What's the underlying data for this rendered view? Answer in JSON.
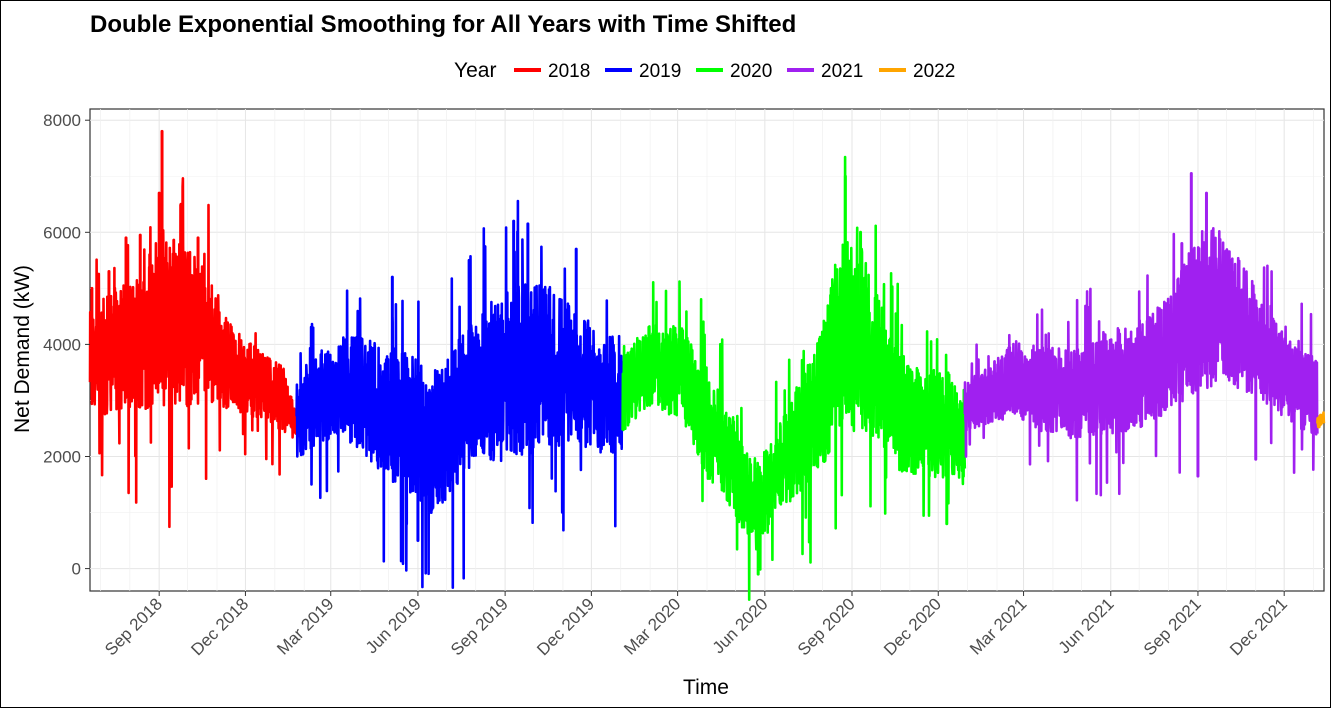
{
  "chart_data": {
    "type": "line",
    "title": "Double Exponential Smoothing for All Years with Time Shifted",
    "xlabel": "Time",
    "ylabel": "Net Demand (kW)",
    "legend_title": "Year",
    "legend_position": "top",
    "grid": true,
    "ylim": [
      -400,
      8200
    ],
    "xlim": [
      "2018-06-20",
      "2022-01-12"
    ],
    "y_ticks": [
      0,
      2000,
      4000,
      6000,
      8000
    ],
    "x_ticks": [
      {
        "date": "2018-09-01",
        "label": "Sep 2018"
      },
      {
        "date": "2018-12-01",
        "label": "Dec 2018"
      },
      {
        "date": "2019-03-01",
        "label": "Mar 2019"
      },
      {
        "date": "2019-06-01",
        "label": "Jun 2019"
      },
      {
        "date": "2019-09-01",
        "label": "Sep 2019"
      },
      {
        "date": "2019-12-01",
        "label": "Dec 2019"
      },
      {
        "date": "2020-03-01",
        "label": "Mar 2020"
      },
      {
        "date": "2020-06-01",
        "label": "Jun 2020"
      },
      {
        "date": "2020-09-01",
        "label": "Sep 2020"
      },
      {
        "date": "2020-12-01",
        "label": "Dec 2020"
      },
      {
        "date": "2021-03-01",
        "label": "Mar 2021"
      },
      {
        "date": "2021-06-01",
        "label": "Jun 2021"
      },
      {
        "date": "2021-09-01",
        "label": "Sep 2021"
      },
      {
        "date": "2021-12-01",
        "label": "Dec 2021"
      }
    ],
    "series": [
      {
        "name": "2018",
        "color": "#ff0000",
        "start": "2018-06-20",
        "end": "2019-01-24",
        "points": [
          [
            "2018-06-20",
            3600
          ],
          [
            "2018-07-15",
            3900
          ],
          [
            "2018-08-10",
            4000
          ],
          [
            "2018-09-05",
            4500
          ],
          [
            "2018-10-01",
            4300
          ],
          [
            "2018-10-25",
            4100
          ],
          [
            "2018-11-20",
            3500
          ],
          [
            "2018-12-15",
            3300
          ],
          [
            "2019-01-10",
            3000
          ],
          [
            "2019-01-24",
            2500
          ]
        ],
        "amp": [
          [
            "2018-06-20",
            1300
          ],
          [
            "2018-07-15",
            1500
          ],
          [
            "2018-08-10",
            1600
          ],
          [
            "2018-09-05",
            2200
          ],
          [
            "2018-10-01",
            1900
          ],
          [
            "2018-10-25",
            1500
          ],
          [
            "2018-11-20",
            1000
          ],
          [
            "2018-12-15",
            800
          ],
          [
            "2019-01-10",
            800
          ],
          [
            "2019-01-24",
            300
          ]
        ]
      },
      {
        "name": "2019",
        "color": "#0000ff",
        "start": "2019-01-24",
        "end": "2020-01-03",
        "points": [
          [
            "2019-01-24",
            2700
          ],
          [
            "2019-02-20",
            3100
          ],
          [
            "2019-03-20",
            3200
          ],
          [
            "2019-04-20",
            2900
          ],
          [
            "2019-05-20",
            2600
          ],
          [
            "2019-06-15",
            2200
          ],
          [
            "2019-07-10",
            2700
          ],
          [
            "2019-08-05",
            3300
          ],
          [
            "2019-09-01",
            3400
          ],
          [
            "2019-09-25",
            3600
          ],
          [
            "2019-10-20",
            3600
          ],
          [
            "2019-11-15",
            3400
          ],
          [
            "2019-12-10",
            3200
          ],
          [
            "2020-01-03",
            3100
          ]
        ],
        "amp": [
          [
            "2019-01-24",
            1000
          ],
          [
            "2019-02-20",
            1100
          ],
          [
            "2019-03-20",
            1300
          ],
          [
            "2019-04-20",
            1500
          ],
          [
            "2019-05-20",
            1700
          ],
          [
            "2019-06-15",
            1700
          ],
          [
            "2019-07-10",
            1700
          ],
          [
            "2019-08-05",
            1800
          ],
          [
            "2019-09-01",
            2000
          ],
          [
            "2019-09-25",
            2100
          ],
          [
            "2019-10-20",
            1900
          ],
          [
            "2019-11-15",
            1600
          ],
          [
            "2019-12-10",
            1500
          ],
          [
            "2020-01-03",
            1400
          ]
        ]
      },
      {
        "name": "2020",
        "color": "#00ff00",
        "start": "2020-01-03",
        "end": "2020-12-29",
        "points": [
          [
            "2020-01-03",
            3200
          ],
          [
            "2020-02-01",
            3600
          ],
          [
            "2020-03-05",
            3500
          ],
          [
            "2020-04-01",
            2600
          ],
          [
            "2020-04-25",
            2000
          ],
          [
            "2020-05-10",
            1400
          ],
          [
            "2020-05-25",
            1100
          ],
          [
            "2020-06-10",
            1600
          ],
          [
            "2020-07-05",
            2300
          ],
          [
            "2020-07-30",
            3000
          ],
          [
            "2020-08-20",
            4200
          ],
          [
            "2020-09-05",
            4300
          ],
          [
            "2020-09-25",
            3700
          ],
          [
            "2020-10-20",
            2800
          ],
          [
            "2020-11-15",
            2600
          ],
          [
            "2020-12-10",
            2600
          ],
          [
            "2020-12-29",
            2200
          ]
        ],
        "amp": [
          [
            "2020-01-03",
            1000
          ],
          [
            "2020-02-01",
            1000
          ],
          [
            "2020-03-05",
            1100
          ],
          [
            "2020-04-01",
            1300
          ],
          [
            "2020-04-25",
            1200
          ],
          [
            "2020-05-10",
            1000
          ],
          [
            "2020-05-25",
            1100
          ],
          [
            "2020-06-10",
            1000
          ],
          [
            "2020-07-05",
            1300
          ],
          [
            "2020-07-30",
            1700
          ],
          [
            "2020-08-20",
            2200
          ],
          [
            "2020-09-05",
            2500
          ],
          [
            "2020-09-25",
            1800
          ],
          [
            "2020-10-20",
            1400
          ],
          [
            "2020-11-15",
            1300
          ],
          [
            "2020-12-10",
            1300
          ],
          [
            "2020-12-29",
            1000
          ]
        ]
      },
      {
        "name": "2021",
        "color": "#a020f0",
        "start": "2020-12-29",
        "end": "2022-01-05",
        "points": [
          [
            "2020-12-29",
            2900
          ],
          [
            "2021-01-25",
            3100
          ],
          [
            "2021-02-20",
            3400
          ],
          [
            "2021-03-20",
            3200
          ],
          [
            "2021-04-20",
            3100
          ],
          [
            "2021-05-20",
            3300
          ],
          [
            "2021-06-15",
            3400
          ],
          [
            "2021-07-10",
            3500
          ],
          [
            "2021-08-05",
            3900
          ],
          [
            "2021-09-01",
            4600
          ],
          [
            "2021-09-25",
            4700
          ],
          [
            "2021-10-20",
            4300
          ],
          [
            "2021-11-15",
            3700
          ],
          [
            "2021-12-10",
            3400
          ],
          [
            "2022-01-05",
            3000
          ]
        ],
        "amp": [
          [
            "2020-12-29",
            600
          ],
          [
            "2021-01-25",
            700
          ],
          [
            "2021-02-20",
            900
          ],
          [
            "2021-03-20",
            1000
          ],
          [
            "2021-04-20",
            1100
          ],
          [
            "2021-05-20",
            1200
          ],
          [
            "2021-06-15",
            1300
          ],
          [
            "2021-07-10",
            1300
          ],
          [
            "2021-08-05",
            1400
          ],
          [
            "2021-09-01",
            1900
          ],
          [
            "2021-09-25",
            1900
          ],
          [
            "2021-10-20",
            1500
          ],
          [
            "2021-11-15",
            1100
          ],
          [
            "2021-12-10",
            1100
          ],
          [
            "2022-01-05",
            900
          ]
        ]
      },
      {
        "name": "2022",
        "color": "#ffa500",
        "start": "2022-01-05",
        "end": "2022-01-12",
        "points": [
          [
            "2022-01-05",
            2600
          ],
          [
            "2022-01-12",
            2700
          ]
        ],
        "amp": [
          [
            "2022-01-05",
            150
          ],
          [
            "2022-01-12",
            150
          ]
        ]
      }
    ],
    "spikes": [
      {
        "date": "2018-09-04",
        "value": 7800,
        "series": "2018"
      },
      {
        "date": "2018-09-01",
        "value": 6700,
        "series": "2018"
      },
      {
        "date": "2018-09-24",
        "value": 6500,
        "series": "2018"
      },
      {
        "date": "2018-10-12",
        "value": 5900,
        "series": "2018"
      },
      {
        "date": "2018-08-12",
        "value": 5950,
        "series": "2018"
      },
      {
        "date": "2018-07-28",
        "value": 5900,
        "series": "2018"
      },
      {
        "date": "2018-08-22",
        "value": 5600,
        "series": "2018"
      },
      {
        "date": "2018-07-10",
        "value": 5300,
        "series": "2018"
      },
      {
        "date": "2018-06-22",
        "value": 5000,
        "series": "2018"
      },
      {
        "date": "2019-05-05",
        "value": 5200,
        "series": "2019"
      },
      {
        "date": "2019-07-25",
        "value": 5500,
        "series": "2019"
      },
      {
        "date": "2019-09-10",
        "value": 6200,
        "series": "2019"
      },
      {
        "date": "2019-09-25",
        "value": 6150,
        "series": "2019"
      },
      {
        "date": "2019-11-15",
        "value": 5700,
        "series": "2019"
      },
      {
        "date": "2019-06-01",
        "value": 500,
        "series": "2019"
      },
      {
        "date": "2019-05-20",
        "value": 800,
        "series": "2019"
      },
      {
        "date": "2019-06-15",
        "value": 1000,
        "series": "2019"
      },
      {
        "date": "2020-08-25",
        "value": 7000,
        "series": "2020"
      },
      {
        "date": "2020-09-10",
        "value": 6000,
        "series": "2020"
      },
      {
        "date": "2020-08-10",
        "value": 5000,
        "series": "2020"
      },
      {
        "date": "2020-05-25",
        "value": -100,
        "series": "2020"
      },
      {
        "date": "2020-12-10",
        "value": 800,
        "series": "2020"
      },
      {
        "date": "2021-08-25",
        "value": 7050,
        "series": "2021"
      },
      {
        "date": "2021-09-10",
        "value": 6700,
        "series": "2021"
      },
      {
        "date": "2021-08-15",
        "value": 5800,
        "series": "2021"
      },
      {
        "date": "2021-09-01",
        "value": 1650,
        "series": "2021"
      },
      {
        "date": "2021-11-01",
        "value": 1950,
        "series": "2021"
      }
    ]
  }
}
